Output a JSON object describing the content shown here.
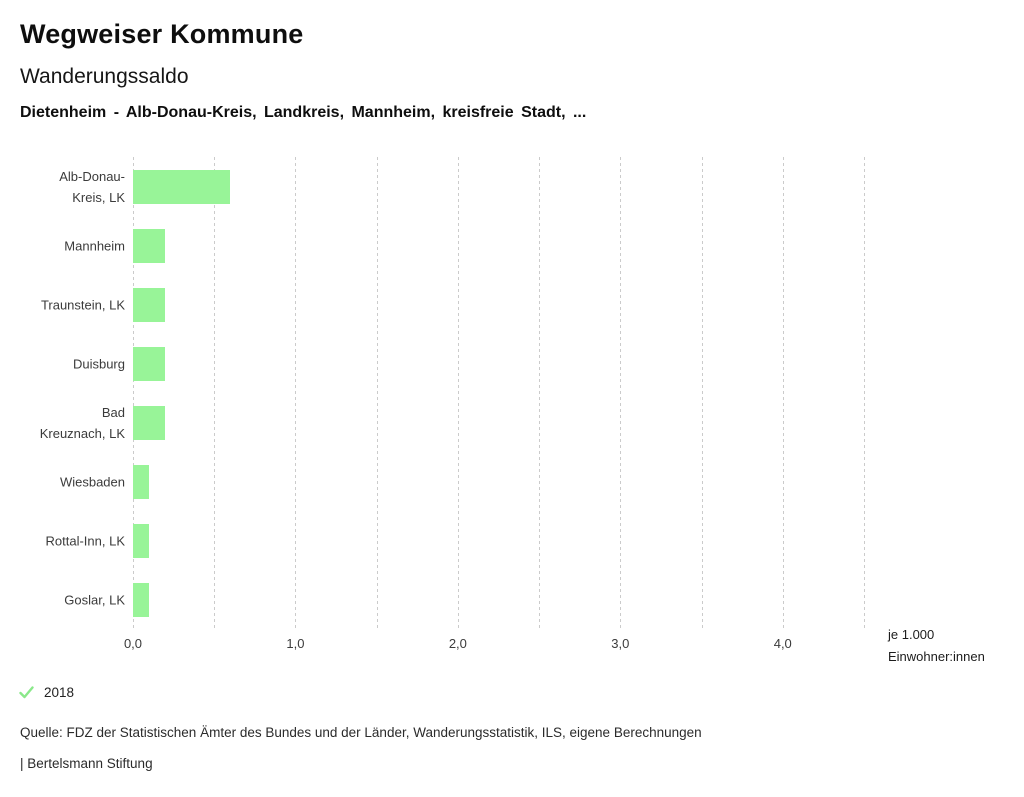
{
  "header": {
    "app_title": "Wegweiser Kommune",
    "chart_title": "Wanderungssaldo",
    "selection": "Dietenheim - Alb-Donau-Kreis, Landkreis, Mannheim, kreisfreie Stadt, ..."
  },
  "chart_data": {
    "type": "bar",
    "orientation": "horizontal",
    "title": "Wanderungssaldo",
    "categories": [
      "Alb-Donau-Kreis, LK",
      "Mannheim",
      "Traunstein, LK",
      "Duisburg",
      "Bad Kreuznach, LK",
      "Wiesbaden",
      "Rottal-Inn, LK",
      "Goslar, LK"
    ],
    "values": [
      0.6,
      0.2,
      0.2,
      0.2,
      0.2,
      0.1,
      0.1,
      0.1
    ],
    "year": "2018",
    "xlim": [
      0,
      4.5
    ],
    "gridline_step": 0.5,
    "grid": true,
    "x_ticks": [
      {
        "value": 0,
        "label": "0,0"
      },
      {
        "value": 1,
        "label": "1,0"
      },
      {
        "value": 2,
        "label": "2,0"
      },
      {
        "value": 3,
        "label": "3,0"
      },
      {
        "value": 4,
        "label": "4,0"
      }
    ],
    "unit_label_lines": [
      "je 1.000",
      "Einwohner:innen"
    ],
    "legend_position": "bottom-left"
  },
  "legend": {
    "check_icon": "check",
    "year_label": "2018"
  },
  "footer": {
    "source": "Quelle: FDZ der Statistischen Ämter des Bundes und der Länder, Wanderungsstatistik, ILS, eigene Berechnungen",
    "attribution": "| Bertelsmann Stiftung"
  },
  "colors": {
    "bar": "#98f498",
    "check": "#8ae88a",
    "grid": "#cbcbcb",
    "text_primary": "#0e0e0e",
    "text_secondary": "#3b3b3b"
  }
}
